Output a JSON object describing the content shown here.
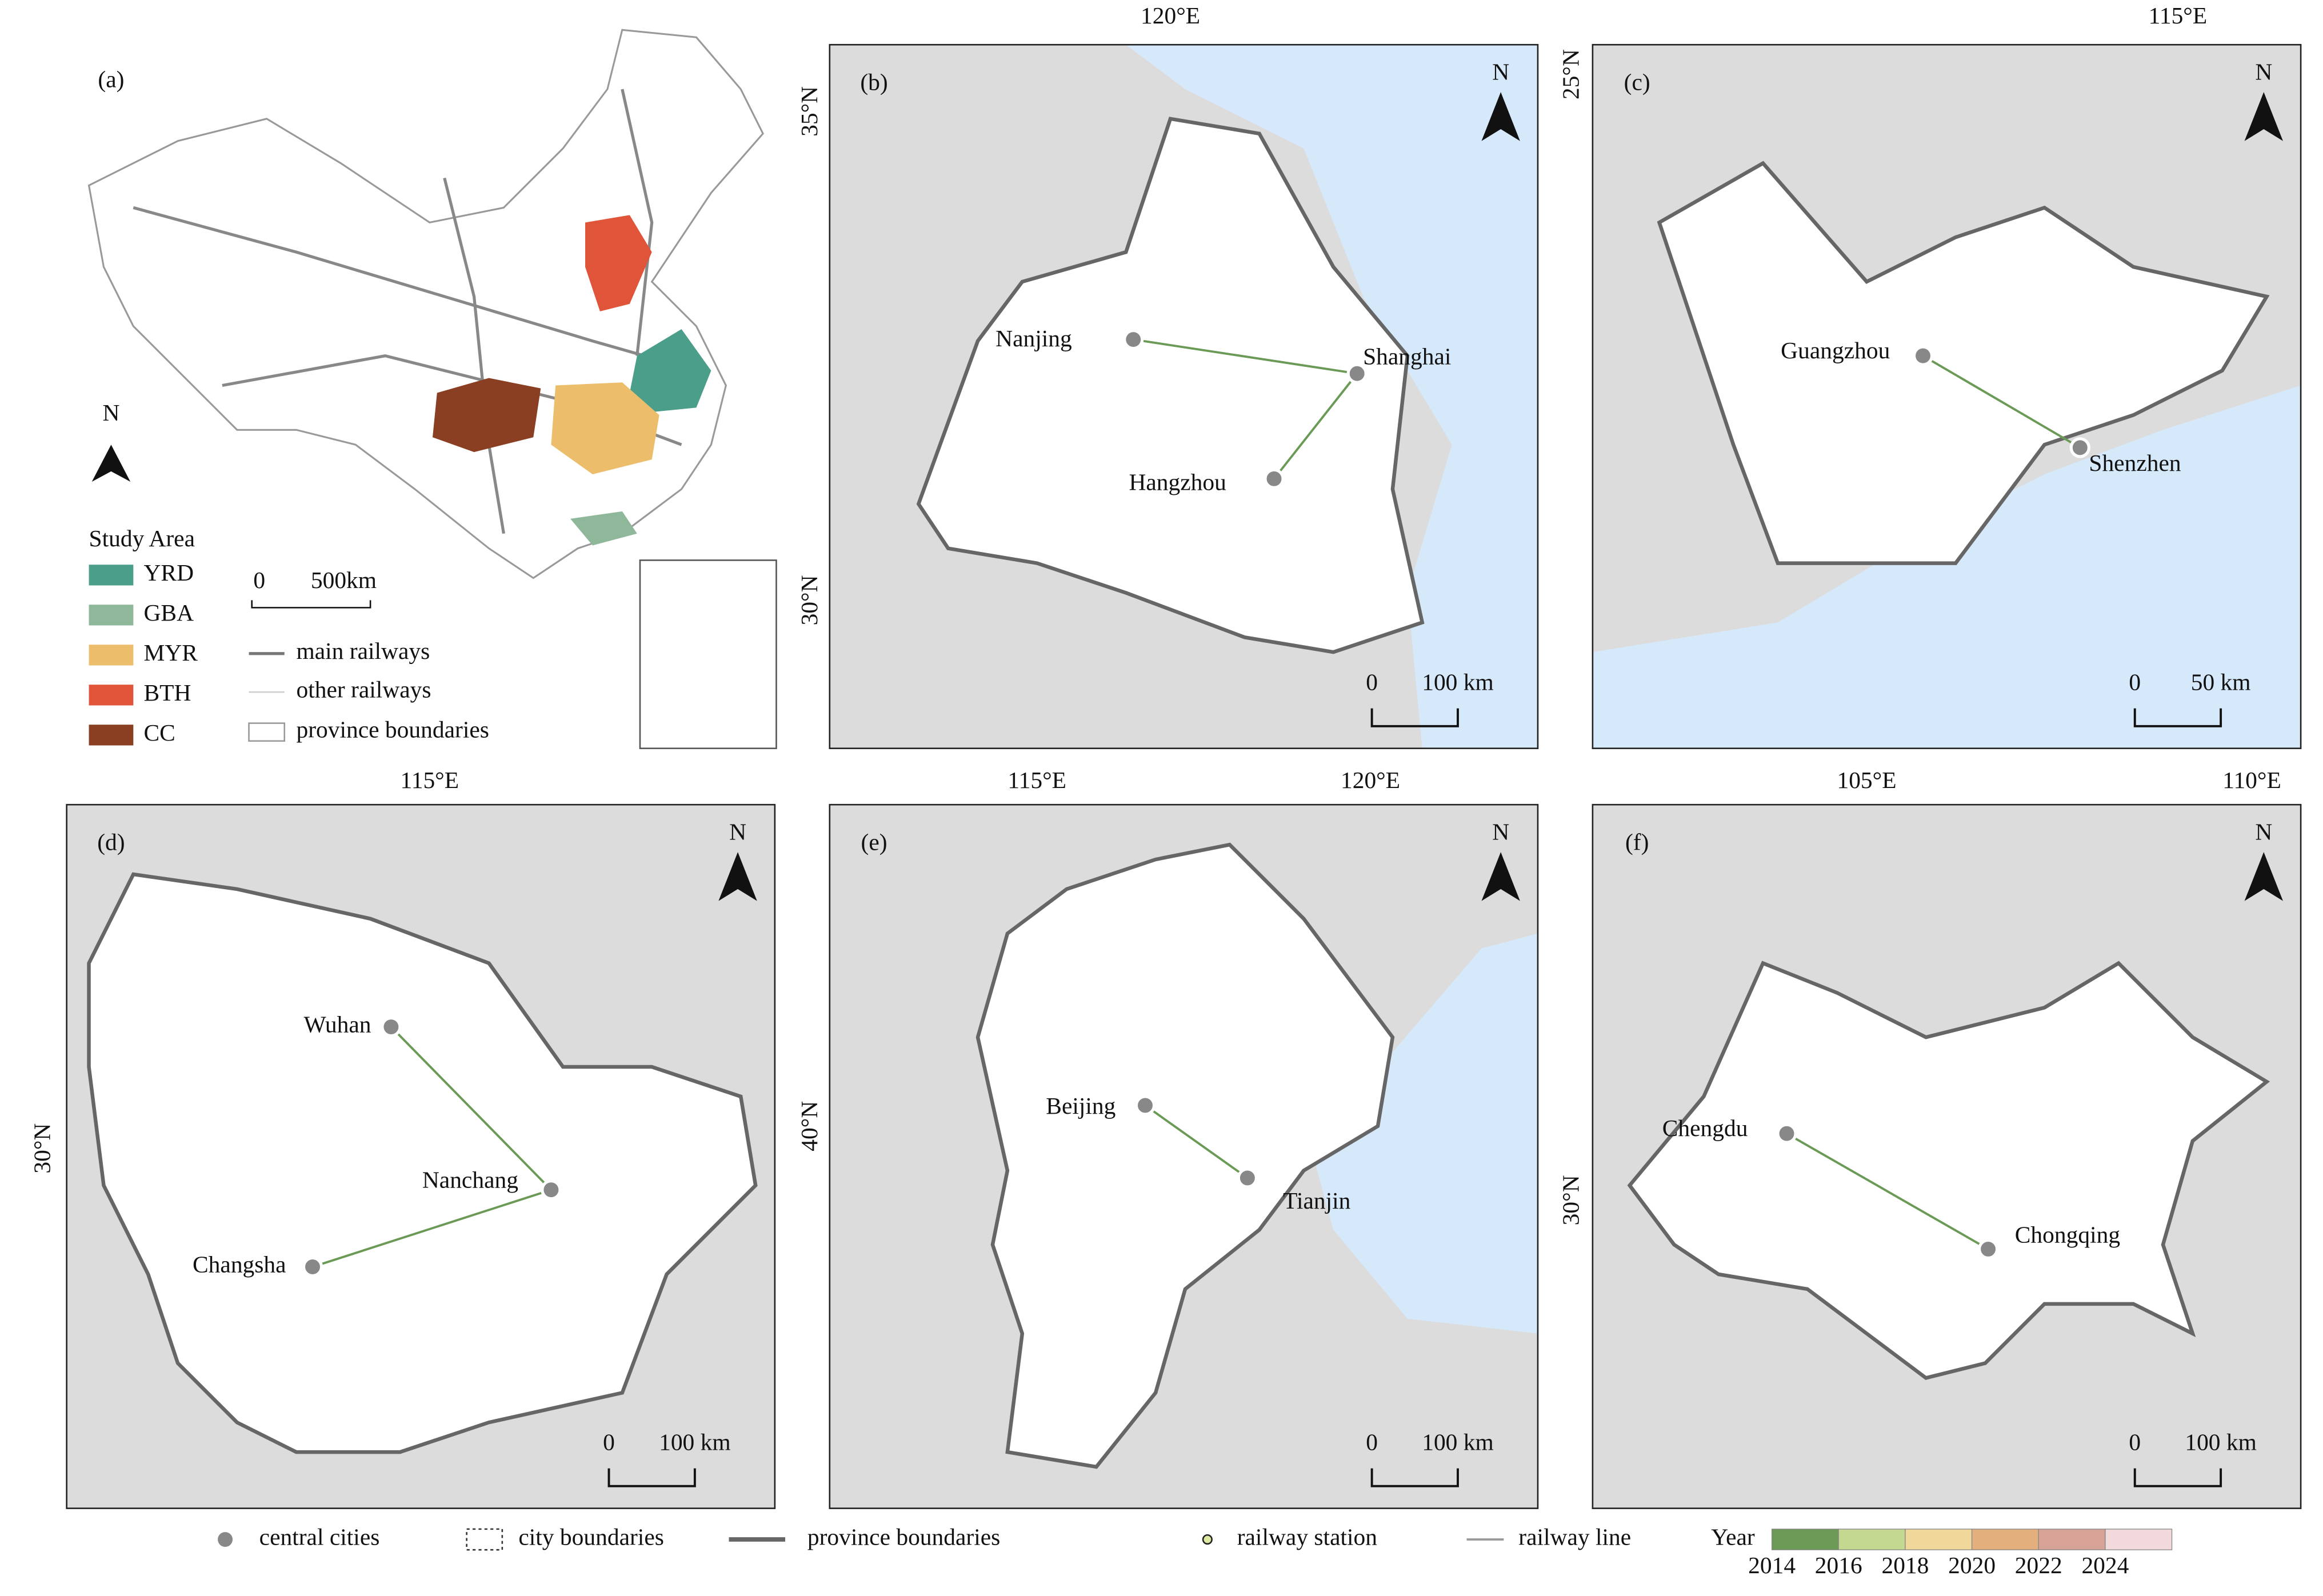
{
  "panel_a": {
    "label": "(a)",
    "north": "N",
    "legend_title": "Study Area",
    "study_areas": [
      {
        "name": "YRD",
        "color": "#4a9e8a"
      },
      {
        "name": "GBA",
        "color": "#8fb89a"
      },
      {
        "name": "MYR",
        "color": "#ecbd6a"
      },
      {
        "name": "BTH",
        "color": "#e0553a"
      },
      {
        "name": "CC",
        "color": "#8a3e22"
      }
    ],
    "scale": [
      "0",
      "500km"
    ],
    "line_legend": [
      "main railways",
      "other railways",
      "province boundaries"
    ]
  },
  "panels": [
    {
      "label": "(b)",
      "north": "N",
      "scale": [
        "0",
        "100 km"
      ],
      "lon_labels": [
        "120°E"
      ],
      "lat_labels": [
        "35°N",
        "30°N"
      ],
      "cities": [
        "Nanjing",
        "Shanghai",
        "Hangzhou"
      ]
    },
    {
      "label": "(c)",
      "north": "N",
      "scale": [
        "0",
        "50 km"
      ],
      "lon_labels": [
        "115°E"
      ],
      "lat_labels": [
        "25°N"
      ],
      "cities": [
        "Guangzhou",
        "Shenzhen"
      ]
    },
    {
      "label": "(d)",
      "north": "N",
      "scale": [
        "0",
        "100 km"
      ],
      "lon_labels": [
        "115°E"
      ],
      "lat_labels": [
        "30°N"
      ],
      "cities": [
        "Wuhan",
        "Nanchang",
        "Changsha"
      ]
    },
    {
      "label": "(e)",
      "north": "N",
      "scale": [
        "0",
        "100 km"
      ],
      "lon_labels": [
        "115°E",
        "120°E"
      ],
      "lat_labels": [
        "40°N"
      ],
      "cities": [
        "Beijing",
        "Tianjin"
      ]
    },
    {
      "label": "(f)",
      "north": "N",
      "scale": [
        "0",
        "100 km"
      ],
      "lon_labels": [
        "105°E",
        "110°E"
      ],
      "lat_labels": [
        "30°N"
      ],
      "cities": [
        "Chengdu",
        "Chongqing"
      ]
    }
  ],
  "legend": {
    "items": [
      "central cities",
      "city boundaries",
      "province boundaries",
      "railway station",
      "railway line"
    ],
    "year_title": "Year",
    "years": [
      "2014",
      "2016",
      "2018",
      "2020",
      "2022",
      "2024"
    ],
    "year_colors": [
      "#6a9a55",
      "#c5d890",
      "#f0d79a",
      "#e3b07d",
      "#d6a396",
      "#f2d9dc"
    ]
  }
}
